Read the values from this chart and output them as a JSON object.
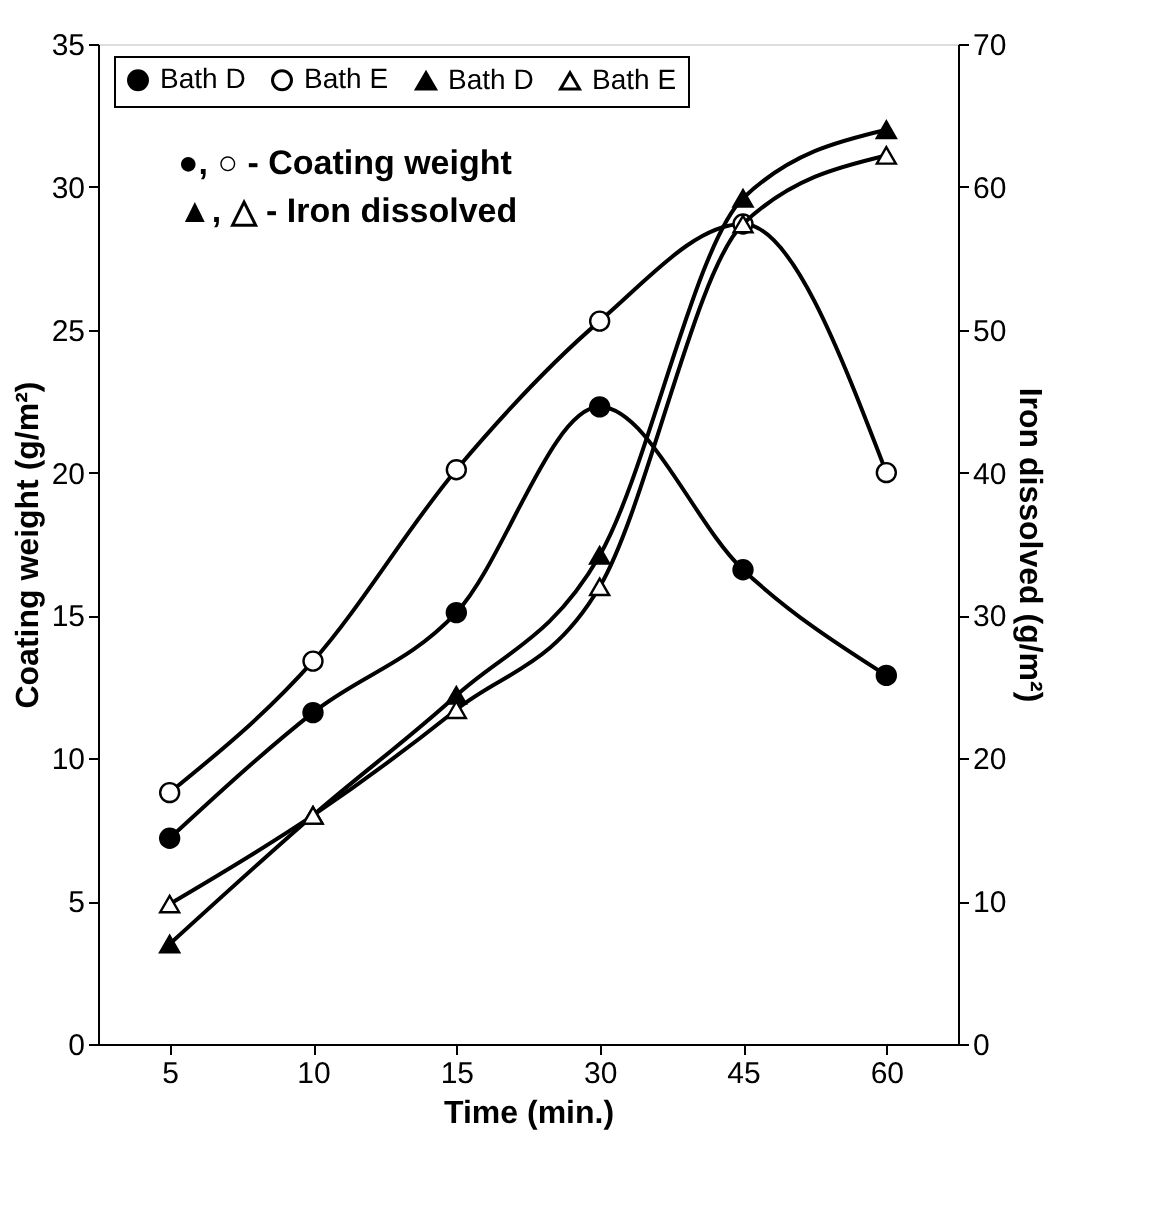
{
  "chart_data": {
    "type": "line",
    "xlabel": "Time (min.)",
    "ylabel": "Coating weight (g/m²)",
    "y2label": "Iron dissolved (g/m²)",
    "categories": [
      "5",
      "10",
      "15",
      "30",
      "45",
      "60"
    ],
    "series": [
      {
        "name": "Bath D",
        "color": "#000000",
        "marker": "circle",
        "values": [
          7.2,
          11.6,
          15.1,
          22.3,
          16.6,
          12.9
        ]
      },
      {
        "name": "Bath E",
        "color": "#000000",
        "marker": "circle-open",
        "values": [
          8.8,
          13.4,
          20.1,
          25.3,
          28.7,
          20.0
        ]
      },
      {
        "name": "Bath D",
        "color": "#000000",
        "marker": "triangle",
        "axis": "y2",
        "values": [
          7,
          16,
          24.4,
          34.2,
          59.2,
          64
        ]
      },
      {
        "name": "Bath E",
        "color": "#000000",
        "marker": "triangle-open",
        "axis": "y2",
        "values": [
          9.8,
          16,
          23.4,
          32,
          57.4,
          62.2
        ]
      }
    ],
    "ylim": [
      0,
      35
    ],
    "yticks": [
      0,
      5,
      10,
      15,
      20,
      25,
      30,
      35
    ],
    "y2lim": [
      0,
      70
    ],
    "y2ticks": [
      0,
      10,
      20,
      30,
      40,
      50,
      60,
      70
    ],
    "grid": false,
    "legend": "top",
    "line_style": "solid",
    "annotations": [
      "●, ○ - Coating weight",
      "▲, △ - Iron dissolved"
    ]
  }
}
